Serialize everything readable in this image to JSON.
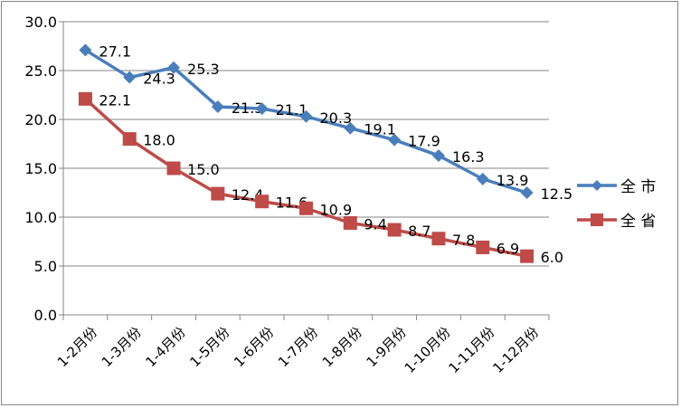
{
  "chart_data": {
    "type": "line",
    "title": "",
    "xlabel": "",
    "ylabel": "",
    "categories": [
      "1-2月份",
      "1-3月份",
      "1-4月份",
      "1-5月份",
      "1-6月份",
      "1-7月份",
      "1-8月份",
      "1-9月份",
      "1-10月份",
      "1-11月份",
      "1-12月份"
    ],
    "ylim": [
      0,
      30
    ],
    "yticks": [
      "0.0",
      "5.0",
      "10.0",
      "15.0",
      "20.0",
      "25.0",
      "30.0"
    ],
    "grid": true,
    "legend_position": "right",
    "series": [
      {
        "name": "全 市",
        "color": "#4A7EBB",
        "marker": "diamond",
        "values": [
          27.1,
          24.3,
          25.3,
          21.3,
          21.1,
          20.3,
          19.1,
          17.9,
          16.3,
          13.9,
          12.5
        ],
        "labels": [
          "27.1",
          "24.3",
          "25.3",
          "21.3",
          "21.1",
          "20.3",
          "19.1",
          "17.9",
          "16.3",
          "13.9",
          "12.5"
        ]
      },
      {
        "name": "全 省",
        "color": "#BE4B48",
        "marker": "square",
        "values": [
          22.1,
          18.0,
          15.0,
          12.4,
          11.6,
          10.9,
          9.4,
          8.7,
          7.8,
          6.9,
          6.0
        ],
        "labels": [
          "22.1",
          "18.0",
          "15.0",
          "12.4",
          "11.6",
          "10.9",
          "9.4",
          "8.7",
          "7.8",
          "6.9",
          "6.0"
        ]
      }
    ]
  }
}
